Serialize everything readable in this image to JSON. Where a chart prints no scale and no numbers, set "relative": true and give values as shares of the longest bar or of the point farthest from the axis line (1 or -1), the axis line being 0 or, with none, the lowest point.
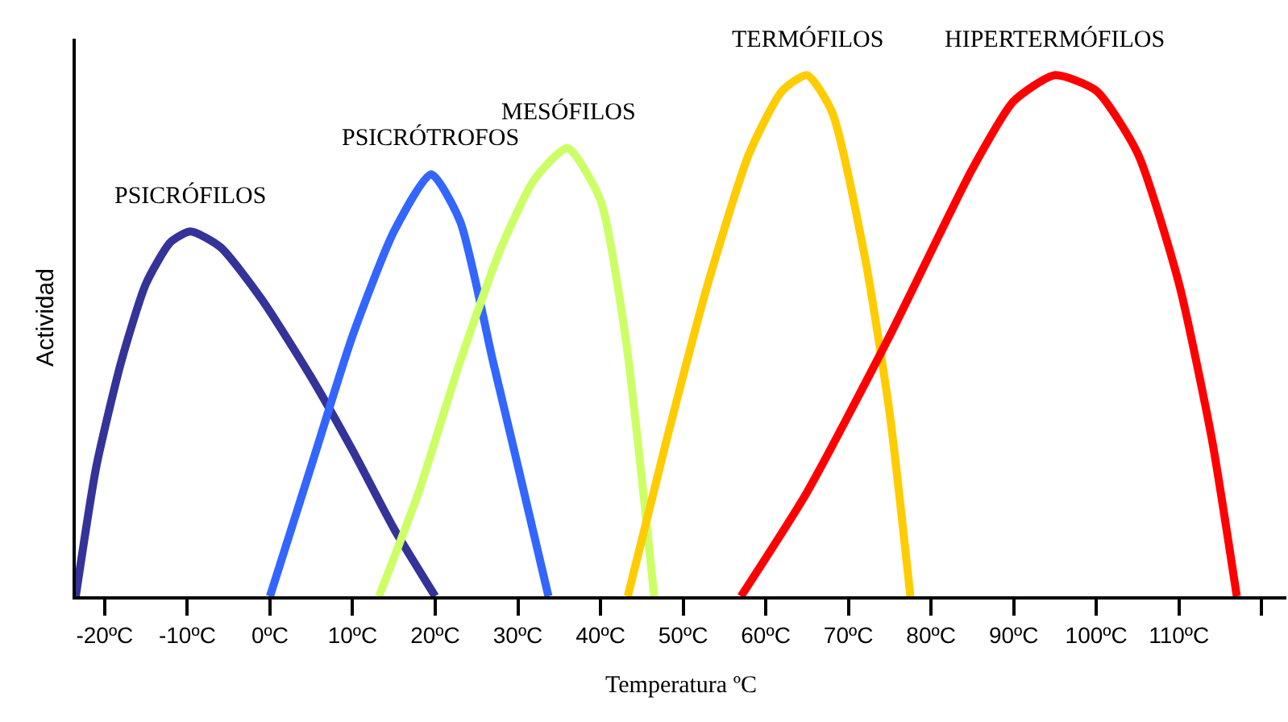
{
  "chart_data": {
    "type": "line",
    "relative": true,
    "xlabel": "Temperatura ºC",
    "ylabel": "Actividad",
    "legend": false,
    "grid": false,
    "marker": "none",
    "line_style": "solid",
    "xlim": [
      -23.5,
      123
    ],
    "xticks": [
      {
        "value": -20,
        "label": "-20ºC"
      },
      {
        "value": -10,
        "label": "-10ºC"
      },
      {
        "value": 0,
        "label": "0ºC"
      },
      {
        "value": 10,
        "label": "10ºC"
      },
      {
        "value": 20,
        "label": "20ºC"
      },
      {
        "value": 30,
        "label": "30ºC"
      },
      {
        "value": 40,
        "label": "40ºC"
      },
      {
        "value": 50,
        "label": "50ºC"
      },
      {
        "value": 60,
        "label": "60ºC"
      },
      {
        "value": 70,
        "label": "70ºC"
      },
      {
        "value": 80,
        "label": "80ºC"
      },
      {
        "value": 90,
        "label": "90ºC"
      },
      {
        "value": 100,
        "label": "100ºC"
      },
      {
        "value": 110,
        "label": "110ºC"
      },
      {
        "value": 120,
        "label": null
      }
    ],
    "series": [
      {
        "name": "PSICRÓFILOS",
        "color": "#333399",
        "x": [
          -23.5,
          -21,
          -18,
          -15,
          -12,
          -9.6,
          -6,
          -1,
          5,
          10,
          15,
          20
        ],
        "values": [
          0,
          0.25,
          0.45,
          0.6,
          0.68,
          0.7,
          0.67,
          0.57,
          0.42,
          0.28,
          0.13,
          0
        ]
      },
      {
        "name": "PSICRÓTROFOS",
        "color": "#3366ff",
        "x": [
          0,
          5,
          10,
          15,
          19.5,
          23,
          27,
          30,
          33.7
        ],
        "values": [
          0,
          0.25,
          0.5,
          0.7,
          0.81,
          0.72,
          0.45,
          0.25,
          0
        ]
      },
      {
        "name": "MESÓFILOS",
        "color": "#ccff66",
        "x": [
          13.2,
          18,
          23,
          28,
          32,
          36,
          40,
          43,
          46.5
        ],
        "values": [
          0,
          0.2,
          0.45,
          0.67,
          0.8,
          0.86,
          0.76,
          0.5,
          0
        ]
      },
      {
        "name": "TERMÓFILOS",
        "color": "#ffcc00",
        "x": [
          43.3,
          48,
          53,
          58,
          62,
          65,
          68,
          72,
          75,
          77.5
        ],
        "values": [
          0,
          0.3,
          0.6,
          0.85,
          0.97,
          1,
          0.93,
          0.65,
          0.35,
          0
        ]
      },
      {
        "name": "HIPERTERMÓFILOS",
        "color": "#ff0000",
        "x": [
          57,
          65,
          75,
          85,
          90,
          95,
          100,
          105,
          110,
          114,
          117
        ],
        "values": [
          0,
          0.2,
          0.5,
          0.82,
          0.95,
          1,
          0.97,
          0.85,
          0.6,
          0.3,
          0
        ]
      }
    ]
  }
}
